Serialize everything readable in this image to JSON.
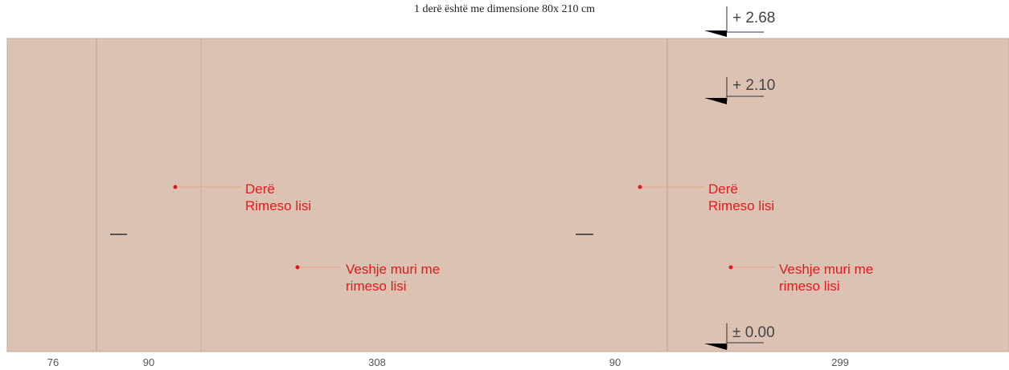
{
  "title": "1 derë është me dimensione 80x 210 cm",
  "colors": {
    "wall_fill": "#dbc2b2",
    "wall_line": "#c0a898",
    "note_red": "#e31a1c",
    "level_marker": "#000000"
  },
  "levels": [
    {
      "label": "+ 2.68"
    },
    {
      "label": "+ 2.10"
    },
    {
      "label": "± 0.00"
    }
  ],
  "annotations": [
    {
      "line1": "Derë",
      "line2": "Rimeso lisi"
    },
    {
      "line1": "Veshje  muri me",
      "line2": "rimeso lisi"
    },
    {
      "line1": "Derë",
      "line2": "Rimeso lisi"
    },
    {
      "line1": "Veshje  muri me",
      "line2": "rimeso lisi"
    }
  ],
  "dimensions": [
    "76",
    "90",
    "308",
    "90",
    "299"
  ]
}
